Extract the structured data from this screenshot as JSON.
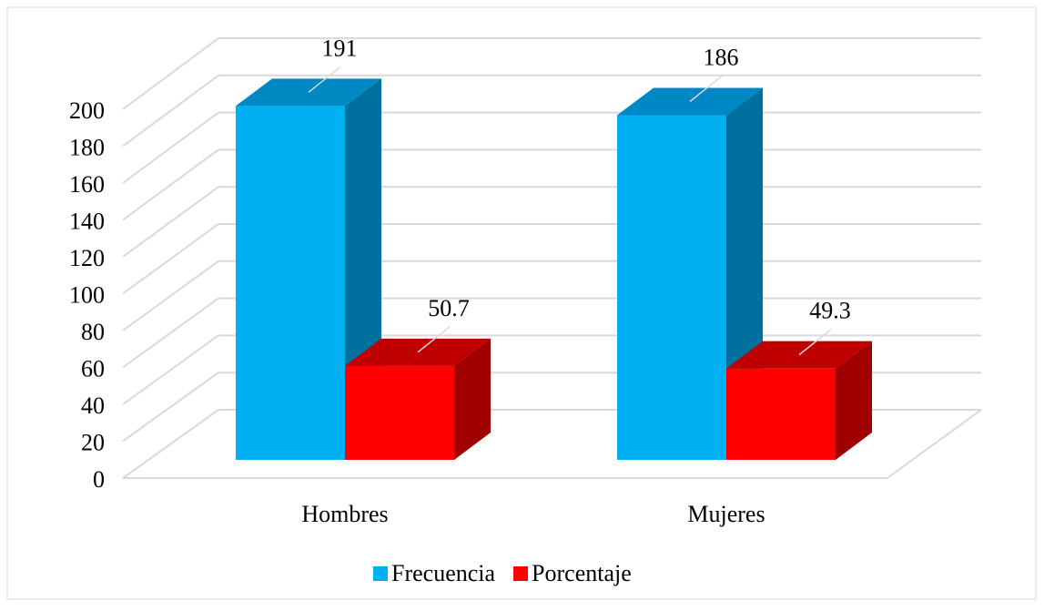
{
  "chart_data": {
    "type": "bar3d",
    "categories": [
      "Hombres",
      "Mujeres"
    ],
    "series": [
      {
        "name": "Frecuencia",
        "color": "#00B0F0",
        "top": "#0088C4",
        "side": "#00709E",
        "values": [
          191,
          186
        ]
      },
      {
        "name": "Porcentaje",
        "color": "#FF0000",
        "top": "#C00000",
        "side": "#A00000",
        "values": [
          50.7,
          49.3
        ]
      }
    ],
    "ylim": [
      0,
      200
    ],
    "yticks": [
      0,
      20,
      40,
      60,
      80,
      100,
      120,
      140,
      160,
      180,
      200
    ],
    "grid": true,
    "legend": "bottom"
  }
}
